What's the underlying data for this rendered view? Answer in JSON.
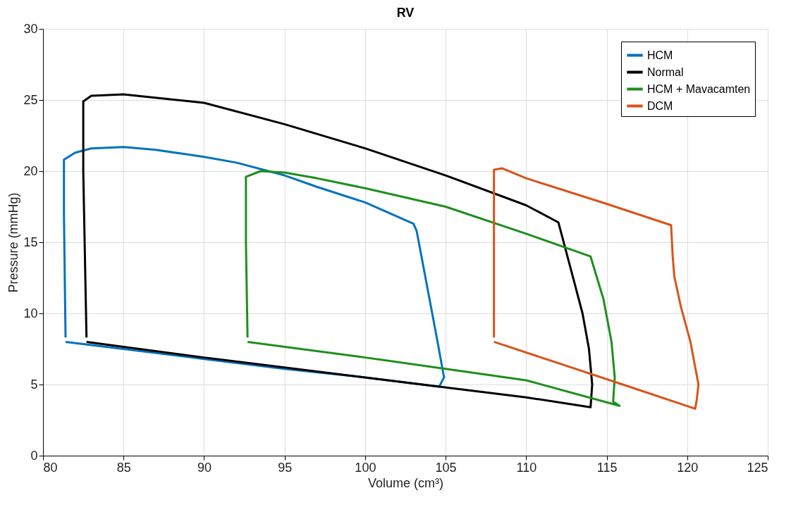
{
  "chart_data": {
    "type": "line",
    "title": "RV",
    "xlabel": "Volume (cm³)",
    "ylabel": "Pressure (mmHg)",
    "xlim": [
      80,
      125
    ],
    "xticks": [
      80,
      85,
      90,
      95,
      100,
      105,
      110,
      115,
      120,
      125
    ],
    "ylim": [
      0,
      30
    ],
    "yticks": [
      0,
      5,
      10,
      15,
      20,
      25,
      30
    ],
    "grid": true,
    "legend": "top right",
    "marker": "none",
    "line_style": "solid",
    "series": [
      {
        "name": "HCM",
        "color": "#0072bd",
        "x": [
          81.4,
          85,
          90,
          95,
          100,
          104.6,
          104.9,
          104.5,
          104,
          103.2,
          103.0,
          100,
          97,
          95,
          92,
          90,
          87,
          85,
          83,
          82,
          81.3,
          81.3,
          81.4
        ],
        "values": [
          8.0,
          7.5,
          6.8,
          6.1,
          5.5,
          4.85,
          5.5,
          8,
          11,
          15.8,
          16.3,
          17.8,
          18.9,
          19.7,
          20.6,
          21.0,
          21.5,
          21.7,
          21.6,
          21.3,
          20.8,
          17,
          8.3
        ]
      },
      {
        "name": "Normal",
        "color": "#000000",
        "x": [
          82.7,
          90,
          100,
          110,
          114,
          114.1,
          113.9,
          113.5,
          112.8,
          112,
          110,
          105,
          100,
          95,
          90,
          85,
          83,
          82.5,
          82.5,
          82.7
        ],
        "values": [
          8.0,
          6.9,
          5.5,
          4.1,
          3.4,
          5,
          7.5,
          10,
          13,
          16.4,
          17.6,
          19.7,
          21.6,
          23.3,
          24.8,
          25.4,
          25.3,
          24.9,
          20,
          8.3
        ]
      },
      {
        "name": "HCM + Mavacamten",
        "color": "#1d8f1d",
        "x": [
          92.7,
          100,
          105,
          110,
          115.8,
          115.4,
          115.5,
          115.3,
          114.8,
          114,
          110,
          105,
          100,
          97,
          95,
          93.5,
          92.6,
          92.6,
          92.7
        ],
        "values": [
          8.0,
          6.9,
          6.1,
          5.3,
          3.5,
          3.8,
          5.5,
          8,
          11,
          14.0,
          15.6,
          17.5,
          18.8,
          19.5,
          19.9,
          20.0,
          19.6,
          15,
          8.3
        ]
      },
      {
        "name": "DCM",
        "color": "#d95319",
        "x": [
          108,
          112,
          116,
          120.5,
          120.6,
          120.7,
          120.2,
          119.6,
          119.2,
          119.1,
          119,
          115,
          110,
          108.5,
          108,
          108,
          108
        ],
        "values": [
          8.0,
          6.5,
          5.0,
          3.3,
          4,
          5,
          8,
          10.5,
          12.6,
          14,
          16.2,
          17.7,
          19.5,
          20.2,
          20.1,
          15,
          8.3
        ]
      }
    ]
  }
}
